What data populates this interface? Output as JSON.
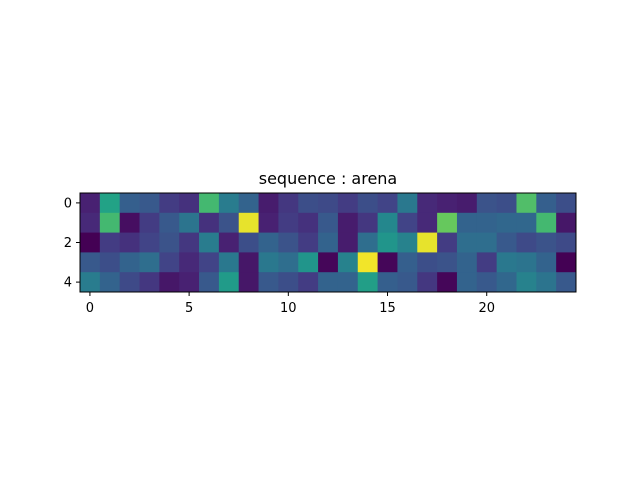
{
  "chart_data": {
    "type": "heatmap",
    "title": "sequence : arena",
    "xlabel": "",
    "ylabel": "",
    "colormap": "viridis",
    "grid": false,
    "x_ticks": [
      0,
      5,
      10,
      15,
      20
    ],
    "y_ticks": [
      0,
      2,
      4
    ],
    "x_range": [
      -0.5,
      24.5
    ],
    "y_range": [
      -0.5,
      4.5
    ],
    "value_range": [
      0,
      1
    ],
    "rows": [
      [
        0.12,
        0.72,
        0.38,
        0.35,
        0.22,
        0.18,
        0.8,
        0.52,
        0.4,
        0.1,
        0.2,
        0.3,
        0.28,
        0.22,
        0.3,
        0.25,
        0.5,
        0.15,
        0.12,
        0.1,
        0.32,
        0.3,
        0.82,
        0.38,
        0.3
      ],
      [
        0.15,
        0.8,
        0.05,
        0.22,
        0.35,
        0.48,
        0.18,
        0.32,
        0.98,
        0.12,
        0.22,
        0.18,
        0.35,
        0.1,
        0.2,
        0.58,
        0.25,
        0.15,
        0.85,
        0.4,
        0.4,
        0.42,
        0.42,
        0.8,
        0.08
      ],
      [
        0.0,
        0.22,
        0.18,
        0.25,
        0.32,
        0.2,
        0.52,
        0.12,
        0.3,
        0.4,
        0.32,
        0.22,
        0.4,
        0.1,
        0.45,
        0.65,
        0.55,
        0.98,
        0.22,
        0.45,
        0.45,
        0.35,
        0.28,
        0.32,
        0.28
      ],
      [
        0.35,
        0.3,
        0.4,
        0.45,
        0.25,
        0.15,
        0.25,
        0.5,
        0.08,
        0.5,
        0.45,
        0.65,
        0.02,
        0.55,
        0.99,
        0.02,
        0.38,
        0.3,
        0.32,
        0.4,
        0.22,
        0.5,
        0.48,
        0.4,
        0.0
      ],
      [
        0.52,
        0.4,
        0.28,
        0.2,
        0.08,
        0.12,
        0.35,
        0.68,
        0.08,
        0.35,
        0.3,
        0.22,
        0.4,
        0.4,
        0.7,
        0.38,
        0.35,
        0.2,
        0.02,
        0.4,
        0.35,
        0.42,
        0.55,
        0.48,
        0.35
      ]
    ]
  }
}
